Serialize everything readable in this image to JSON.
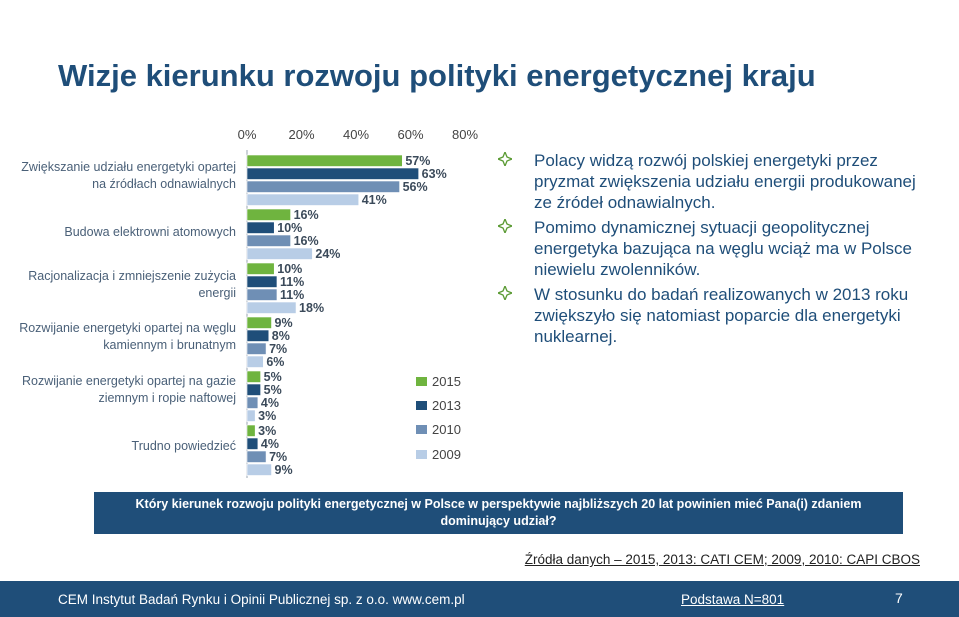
{
  "slide": {
    "title": "Wizje kierunku rozwoju polityki energetycznej kraju",
    "bullets": [
      "Polacy widzą rozwój polskiej energetyki przez pryzmat zwiększenia udziału energii produkowanej ze źródeł odnawialnych.",
      "Pomimo dynamicznej sytuacji geopolitycznej energetyka bazująca na węglu wciąż ma w Polsce niewielu zwolenników.",
      "W stosunku do badań realizowanych w 2013 roku zwiększyło się natomiast poparcie dla energetyki nuklearnej."
    ],
    "question": "Który kierunek rozwoju polityki energetycznej w Polsce w perspektywie najbliższych 20 lat powinien mieć Pana(i) zdaniem dominujący udział?",
    "source": "Źródła danych – 2015, 2013: CATI CEM; 2009, 2010: CAPI CBOS",
    "footer_org": "CEM Instytut Badań Rynku i Opinii Publicznej sp. z o.o. www.cem.pl",
    "footer_base": "Podstawa N=801",
    "page_number": "7",
    "colors": {
      "title": "#1f4e79",
      "bar_band": "#1f4e79",
      "bullet_icon": "#5a9a33"
    },
    "bullet_icon": "diamond-bullet-icon"
  },
  "chart_data": {
    "type": "bar",
    "orientation": "horizontal",
    "categories": [
      "Zwiększanie udziału energetyki opartej na źródłach odnawialnych",
      "Budowa elektrowni atomowych",
      "Racjonalizacja i zmniejszenie zużycia energii",
      "Rozwijanie energetyki opartej na węglu kamiennym i brunatnym",
      "Rozwijanie energetyki opartej na gazie ziemnym i ropie naftowej",
      "Trudno powiedzieć"
    ],
    "category_labels": [
      [
        "Zwiększanie udziału energetyki opartej",
        "na źródłach odnawialnych"
      ],
      [
        "Budowa elektrowni atomowych"
      ],
      [
        "Racjonalizacja i zmniejszenie zużycia",
        "energii"
      ],
      [
        "Rozwijanie energetyki opartej na węglu",
        "kamiennym i brunatnym"
      ],
      [
        "Rozwijanie energetyki opartej na gazie",
        "ziemnym i ropie naftowej"
      ],
      [
        "Trudno powiedzieć"
      ]
    ],
    "series": [
      {
        "name": "2015",
        "color": "#6fb43f",
        "values": [
          57,
          16,
          10,
          9,
          5,
          3
        ]
      },
      {
        "name": "2013",
        "color": "#1f4e79",
        "values": [
          63,
          10,
          11,
          8,
          5,
          4
        ]
      },
      {
        "name": "2010",
        "color": "#6f8fb5",
        "values": [
          56,
          16,
          11,
          7,
          4,
          7
        ]
      },
      {
        "name": "2009",
        "color": "#b8cde6",
        "values": [
          41,
          24,
          18,
          6,
          3,
          9
        ]
      }
    ],
    "value_labels": [
      [
        "57%",
        "16%",
        "10%",
        "9%",
        "5%",
        "3%"
      ],
      [
        "63%",
        "10%",
        "11%",
        "8%",
        "5%",
        "4%"
      ],
      [
        "56%",
        "16%",
        "11%",
        "7%",
        "4%",
        "7%"
      ],
      [
        "41%",
        "24%",
        "18%",
        "6%",
        "3%",
        "9%"
      ]
    ],
    "xlim": [
      0,
      80
    ],
    "x_ticks": [
      "0%",
      "20%",
      "40%",
      "60%",
      "80%"
    ],
    "legend_position": "bottom-right",
    "grid": false
  }
}
